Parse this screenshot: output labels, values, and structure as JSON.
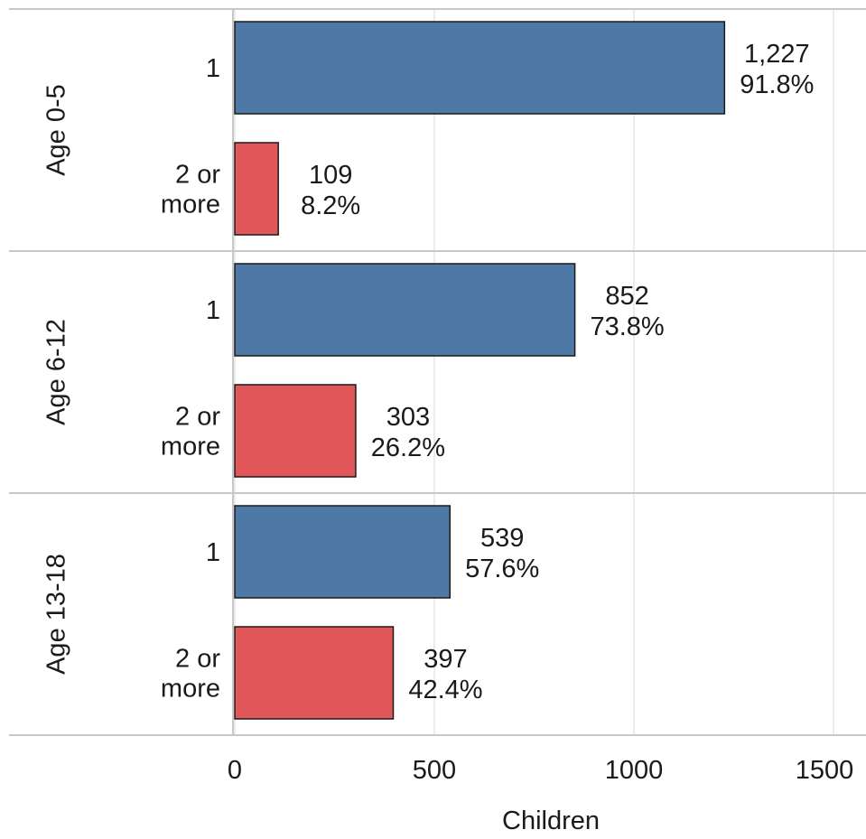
{
  "chart_data": {
    "type": "bar",
    "orientation": "horizontal",
    "title": "",
    "xlabel": "Children",
    "ylabel": "",
    "xlim": [
      0,
      1550
    ],
    "x_ticks": [
      0,
      500,
      1000,
      1500
    ],
    "x_tick_labels": [
      "0",
      "500",
      "1000",
      "1500"
    ],
    "grid": true,
    "legend": "none",
    "colors": {
      "1": "#4e79a7",
      "2 or more": "#e15759"
    },
    "facets": [
      {
        "label": "Age 0-5",
        "bars": [
          {
            "category": "1",
            "value": 1227,
            "count_label": "1,227",
            "pct_label": "91.8%"
          },
          {
            "category": "2 or more",
            "category_lines": [
              "2 or",
              "more"
            ],
            "value": 109,
            "count_label": "109",
            "pct_label": "8.2%"
          }
        ]
      },
      {
        "label": "Age 6-12",
        "bars": [
          {
            "category": "1",
            "value": 852,
            "count_label": "852",
            "pct_label": "73.8%"
          },
          {
            "category": "2 or more",
            "category_lines": [
              "2 or",
              "more"
            ],
            "value": 303,
            "count_label": "303",
            "pct_label": "26.2%"
          }
        ]
      },
      {
        "label": "Age 13-18",
        "bars": [
          {
            "category": "1",
            "value": 539,
            "count_label": "539",
            "pct_label": "57.6%"
          },
          {
            "category": "2 or more",
            "category_lines": [
              "2 or",
              "more"
            ],
            "value": 397,
            "count_label": "397",
            "pct_label": "42.4%"
          }
        ]
      }
    ]
  }
}
